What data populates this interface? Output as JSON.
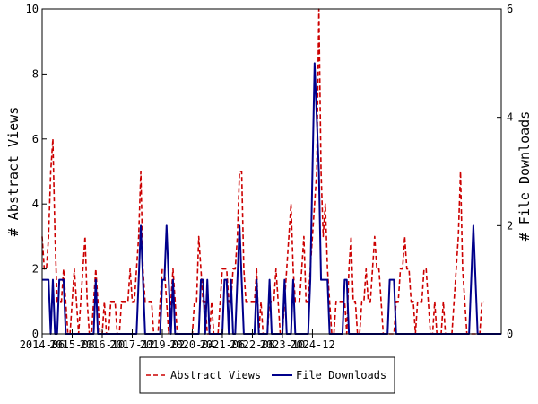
{
  "chart_data": {
    "type": "line",
    "ylabel": "# Abstract Views",
    "y2label": "# File Downloads",
    "ylim": [
      0,
      10
    ],
    "y2lim": [
      0,
      6
    ],
    "yticks": [
      "0",
      "2",
      "4",
      "6",
      "8",
      "10"
    ],
    "y2ticks": [
      "0",
      "2",
      "4",
      "6"
    ],
    "xticks": [
      "2014-06",
      "2015-08",
      "2016-10",
      "2017-12",
      "2019-02",
      "2020-04",
      "2021-06",
      "2022-08",
      "2023-10",
      "2024-12"
    ],
    "x_start": "2014-06",
    "grid": false,
    "legend": "bottom-center",
    "series": [
      {
        "name": "Abstract Views",
        "axis": "left",
        "color": "#cc0000",
        "style": "dashed",
        "values": [
          3,
          2,
          2,
          3,
          5,
          6,
          3,
          1,
          1,
          1,
          2,
          1,
          0,
          0,
          1,
          2,
          1,
          0,
          1,
          2,
          3,
          1,
          0,
          0,
          1,
          2,
          1,
          0,
          0,
          1,
          0,
          0,
          1,
          1,
          1,
          0,
          0,
          1,
          1,
          1,
          1,
          2,
          1,
          1,
          2,
          3,
          5,
          2,
          1,
          1,
          1,
          1,
          0,
          0,
          0,
          1,
          2,
          2,
          1,
          0,
          1,
          2,
          1,
          0,
          0,
          0,
          0,
          0,
          0,
          0,
          0,
          1,
          1,
          3,
          2,
          1,
          1,
          0,
          0,
          1,
          0,
          0,
          0,
          1,
          2,
          2,
          2,
          1,
          1,
          2,
          2,
          3,
          5,
          5,
          2,
          1,
          1,
          1,
          1,
          1,
          2,
          0,
          1,
          0,
          0,
          0,
          1,
          1,
          1,
          2,
          1,
          0,
          0,
          1,
          2,
          3,
          4,
          2,
          1,
          1,
          1,
          2,
          3,
          1,
          1,
          2,
          3,
          4,
          5,
          10,
          5,
          3,
          4,
          2,
          1,
          0,
          0,
          1,
          1,
          1,
          1,
          1,
          0,
          2,
          3,
          1,
          1,
          0,
          0,
          1,
          1,
          2,
          1,
          1,
          2,
          3,
          2,
          2,
          1,
          0,
          0,
          0,
          0,
          0,
          0,
          1,
          1,
          2,
          2,
          3,
          2,
          2,
          1,
          1,
          0,
          1,
          1,
          1,
          2,
          2,
          1,
          0,
          0,
          1,
          0,
          0,
          0,
          1,
          0,
          0,
          0,
          0,
          1,
          2,
          3,
          5,
          2,
          1,
          0,
          0,
          0,
          0,
          0,
          0,
          0,
          1,
          1
        ]
      },
      {
        "name": "File Downloads",
        "axis": "right",
        "color": "#00008b",
        "style": "solid",
        "values": [
          1,
          1,
          1,
          1,
          0,
          1,
          0,
          0,
          1,
          1,
          1,
          0,
          0,
          0,
          0,
          0,
          0,
          0,
          0,
          0,
          0,
          0,
          0,
          0,
          0,
          1,
          0,
          0,
          0,
          0,
          0,
          0,
          0,
          0,
          0,
          0,
          0,
          0,
          0,
          0,
          0,
          0,
          0,
          0,
          0,
          1,
          2,
          1,
          0,
          0,
          0,
          0,
          0,
          0,
          0,
          0,
          1,
          1,
          2,
          1,
          0,
          1,
          0,
          0,
          0,
          0,
          0,
          0,
          0,
          0,
          0,
          0,
          0,
          0,
          1,
          1,
          0,
          1,
          0,
          0,
          0,
          0,
          0,
          0,
          0,
          1,
          1,
          0,
          1,
          0,
          0,
          1,
          2,
          1,
          0,
          0,
          0,
          0,
          0,
          0,
          1,
          0,
          0,
          0,
          0,
          0,
          1,
          0,
          0,
          0,
          0,
          0,
          0,
          1,
          0,
          0,
          0,
          1,
          0,
          0,
          0,
          0,
          0,
          0,
          0,
          1,
          3,
          5,
          4,
          3,
          1,
          1,
          1,
          1,
          0,
          0,
          0,
          0,
          0,
          0,
          0,
          1,
          1,
          0,
          0,
          0,
          0,
          0,
          0,
          0,
          0,
          0,
          0,
          0,
          0,
          0,
          0,
          0,
          0,
          0,
          0,
          0,
          1,
          1,
          1,
          0,
          0,
          0,
          0,
          0,
          0,
          0,
          0,
          0,
          0,
          0,
          0,
          0,
          0,
          0,
          0,
          0,
          0,
          0,
          0,
          0,
          0,
          0,
          0,
          0,
          0,
          0,
          0,
          0,
          0,
          0,
          0,
          0,
          0,
          0,
          1,
          2,
          1,
          0,
          0,
          0,
          0,
          0,
          0,
          0,
          0,
          0,
          0,
          0,
          0
        ]
      }
    ]
  }
}
